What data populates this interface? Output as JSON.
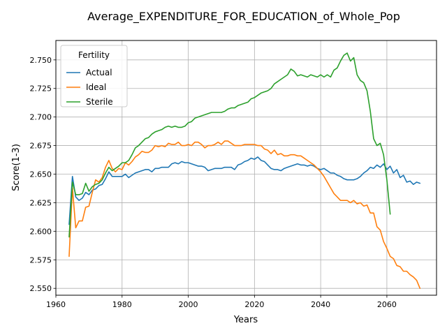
{
  "chart_data": {
    "type": "line",
    "title": "Average_EXPENDITURE_FOR_EDUCATION_of_Whole_Pop",
    "xlabel": "Years",
    "ylabel": "Score(1-3)",
    "xlim": [
      1960,
      2075
    ],
    "ylim": [
      2.544,
      2.767
    ],
    "x_ticks": [
      1960,
      1980,
      2000,
      2020,
      2040,
      2060
    ],
    "y_ticks": [
      2.55,
      2.575,
      2.6,
      2.625,
      2.65,
      2.675,
      2.7,
      2.725,
      2.75
    ],
    "grid": true,
    "legend": {
      "title": "Fertility",
      "placement": "top-left",
      "entries": [
        "Actual",
        "Ideal",
        "Sterile"
      ]
    },
    "series": [
      {
        "name": "Actual",
        "color": "#1f77b4",
        "points": [
          [
            1964,
            2.606
          ],
          [
            1965,
            2.648
          ],
          [
            1966,
            2.63
          ],
          [
            1967,
            2.627
          ],
          [
            1968,
            2.629
          ],
          [
            1969,
            2.634
          ],
          [
            1970,
            2.632
          ],
          [
            1971,
            2.636
          ],
          [
            1972,
            2.637
          ],
          [
            1973,
            2.64
          ],
          [
            1974,
            2.641
          ],
          [
            1975,
            2.646
          ],
          [
            1976,
            2.652
          ],
          [
            1977,
            2.648
          ],
          [
            1978,
            2.648
          ],
          [
            1979,
            2.648
          ],
          [
            1980,
            2.648
          ],
          [
            1981,
            2.65
          ],
          [
            1982,
            2.647
          ],
          [
            1983,
            2.649
          ],
          [
            1984,
            2.651
          ],
          [
            1985,
            2.652
          ],
          [
            1986,
            2.653
          ],
          [
            1987,
            2.654
          ],
          [
            1988,
            2.654
          ],
          [
            1989,
            2.652
          ],
          [
            1990,
            2.655
          ],
          [
            1991,
            2.655
          ],
          [
            1992,
            2.656
          ],
          [
            1993,
            2.656
          ],
          [
            1994,
            2.656
          ],
          [
            1995,
            2.659
          ],
          [
            1996,
            2.66
          ],
          [
            1997,
            2.659
          ],
          [
            1998,
            2.661
          ],
          [
            1999,
            2.66
          ],
          [
            2000,
            2.66
          ],
          [
            2001,
            2.659
          ],
          [
            2002,
            2.658
          ],
          [
            2003,
            2.657
          ],
          [
            2004,
            2.657
          ],
          [
            2005,
            2.656
          ],
          [
            2006,
            2.653
          ],
          [
            2007,
            2.654
          ],
          [
            2008,
            2.655
          ],
          [
            2009,
            2.655
          ],
          [
            2010,
            2.655
          ],
          [
            2011,
            2.656
          ],
          [
            2012,
            2.656
          ],
          [
            2013,
            2.656
          ],
          [
            2014,
            2.654
          ],
          [
            2015,
            2.658
          ],
          [
            2016,
            2.659
          ],
          [
            2017,
            2.661
          ],
          [
            2018,
            2.662
          ],
          [
            2019,
            2.664
          ],
          [
            2020,
            2.663
          ],
          [
            2021,
            2.665
          ],
          [
            2022,
            2.662
          ],
          [
            2023,
            2.661
          ],
          [
            2024,
            2.658
          ],
          [
            2025,
            2.655
          ],
          [
            2026,
            2.654
          ],
          [
            2027,
            2.654
          ],
          [
            2028,
            2.653
          ],
          [
            2029,
            2.655
          ],
          [
            2030,
            2.656
          ],
          [
            2031,
            2.657
          ],
          [
            2032,
            2.658
          ],
          [
            2033,
            2.659
          ],
          [
            2034,
            2.658
          ],
          [
            2035,
            2.658
          ],
          [
            2036,
            2.657
          ],
          [
            2037,
            2.658
          ],
          [
            2038,
            2.657
          ],
          [
            2039,
            2.655
          ],
          [
            2040,
            2.654
          ],
          [
            2041,
            2.655
          ],
          [
            2042,
            2.653
          ],
          [
            2043,
            2.651
          ],
          [
            2044,
            2.651
          ],
          [
            2045,
            2.649
          ],
          [
            2046,
            2.648
          ],
          [
            2047,
            2.646
          ],
          [
            2048,
            2.645
          ],
          [
            2049,
            2.645
          ],
          [
            2050,
            2.645
          ],
          [
            2051,
            2.646
          ],
          [
            2052,
            2.648
          ],
          [
            2053,
            2.651
          ],
          [
            2054,
            2.653
          ],
          [
            2055,
            2.656
          ],
          [
            2056,
            2.655
          ],
          [
            2057,
            2.658
          ],
          [
            2058,
            2.656
          ],
          [
            2059,
            2.659
          ],
          [
            2060,
            2.654
          ],
          [
            2061,
            2.657
          ],
          [
            2062,
            2.651
          ],
          [
            2063,
            2.654
          ],
          [
            2064,
            2.647
          ],
          [
            2065,
            2.649
          ],
          [
            2066,
            2.643
          ],
          [
            2067,
            2.644
          ],
          [
            2068,
            2.641
          ],
          [
            2069,
            2.643
          ],
          [
            2070,
            2.642
          ]
        ]
      },
      {
        "name": "Ideal",
        "color": "#ff7f0e",
        "points": [
          [
            1964,
            2.578
          ],
          [
            1965,
            2.638
          ],
          [
            1966,
            2.603
          ],
          [
            1967,
            2.609
          ],
          [
            1968,
            2.609
          ],
          [
            1969,
            2.621
          ],
          [
            1970,
            2.622
          ],
          [
            1971,
            2.634
          ],
          [
            1972,
            2.645
          ],
          [
            1973,
            2.643
          ],
          [
            1974,
            2.647
          ],
          [
            1975,
            2.656
          ],
          [
            1976,
            2.662
          ],
          [
            1977,
            2.655
          ],
          [
            1978,
            2.652
          ],
          [
            1979,
            2.655
          ],
          [
            1980,
            2.654
          ],
          [
            1981,
            2.66
          ],
          [
            1982,
            2.658
          ],
          [
            1983,
            2.661
          ],
          [
            1984,
            2.665
          ],
          [
            1985,
            2.667
          ],
          [
            1986,
            2.67
          ],
          [
            1987,
            2.669
          ],
          [
            1988,
            2.669
          ],
          [
            1989,
            2.671
          ],
          [
            1990,
            2.675
          ],
          [
            1991,
            2.674
          ],
          [
            1992,
            2.675
          ],
          [
            1993,
            2.674
          ],
          [
            1994,
            2.677
          ],
          [
            1995,
            2.676
          ],
          [
            1996,
            2.676
          ],
          [
            1997,
            2.678
          ],
          [
            1998,
            2.675
          ],
          [
            1999,
            2.675
          ],
          [
            2000,
            2.676
          ],
          [
            2001,
            2.675
          ],
          [
            2002,
            2.678
          ],
          [
            2003,
            2.678
          ],
          [
            2004,
            2.676
          ],
          [
            2005,
            2.673
          ],
          [
            2006,
            2.675
          ],
          [
            2007,
            2.675
          ],
          [
            2008,
            2.676
          ],
          [
            2009,
            2.678
          ],
          [
            2010,
            2.676
          ],
          [
            2011,
            2.679
          ],
          [
            2012,
            2.679
          ],
          [
            2013,
            2.677
          ],
          [
            2014,
            2.675
          ],
          [
            2015,
            2.675
          ],
          [
            2016,
            2.675
          ],
          [
            2017,
            2.676
          ],
          [
            2018,
            2.676
          ],
          [
            2019,
            2.676
          ],
          [
            2020,
            2.676
          ],
          [
            2021,
            2.675
          ],
          [
            2022,
            2.675
          ],
          [
            2023,
            2.672
          ],
          [
            2024,
            2.671
          ],
          [
            2025,
            2.668
          ],
          [
            2026,
            2.671
          ],
          [
            2027,
            2.667
          ],
          [
            2028,
            2.668
          ],
          [
            2029,
            2.666
          ],
          [
            2030,
            2.666
          ],
          [
            2031,
            2.667
          ],
          [
            2032,
            2.667
          ],
          [
            2033,
            2.666
          ],
          [
            2034,
            2.666
          ],
          [
            2035,
            2.664
          ],
          [
            2036,
            2.662
          ],
          [
            2037,
            2.66
          ],
          [
            2038,
            2.658
          ],
          [
            2039,
            2.655
          ],
          [
            2040,
            2.652
          ],
          [
            2041,
            2.648
          ],
          [
            2042,
            2.643
          ],
          [
            2043,
            2.638
          ],
          [
            2044,
            2.633
          ],
          [
            2045,
            2.63
          ],
          [
            2046,
            2.627
          ],
          [
            2047,
            2.627
          ],
          [
            2048,
            2.627
          ],
          [
            2049,
            2.625
          ],
          [
            2050,
            2.627
          ],
          [
            2051,
            2.624
          ],
          [
            2052,
            2.625
          ],
          [
            2053,
            2.622
          ],
          [
            2054,
            2.623
          ],
          [
            2055,
            2.616
          ],
          [
            2056,
            2.616
          ],
          [
            2057,
            2.604
          ],
          [
            2058,
            2.601
          ],
          [
            2059,
            2.591
          ],
          [
            2060,
            2.585
          ],
          [
            2061,
            2.578
          ],
          [
            2062,
            2.576
          ],
          [
            2063,
            2.57
          ],
          [
            2064,
            2.569
          ],
          [
            2065,
            2.565
          ],
          [
            2066,
            2.565
          ],
          [
            2067,
            2.562
          ],
          [
            2068,
            2.56
          ],
          [
            2069,
            2.557
          ],
          [
            2070,
            2.55
          ]
        ]
      },
      {
        "name": "Sterile",
        "color": "#2ca02c",
        "points": [
          [
            1964,
            2.595
          ],
          [
            1965,
            2.643
          ],
          [
            1966,
            2.632
          ],
          [
            1967,
            2.632
          ],
          [
            1968,
            2.633
          ],
          [
            1969,
            2.642
          ],
          [
            1970,
            2.635
          ],
          [
            1971,
            2.639
          ],
          [
            1972,
            2.641
          ],
          [
            1973,
            2.642
          ],
          [
            1974,
            2.645
          ],
          [
            1975,
            2.651
          ],
          [
            1976,
            2.656
          ],
          [
            1977,
            2.653
          ],
          [
            1978,
            2.655
          ],
          [
            1979,
            2.657
          ],
          [
            1980,
            2.66
          ],
          [
            1981,
            2.66
          ],
          [
            1982,
            2.662
          ],
          [
            1983,
            2.667
          ],
          [
            1984,
            2.673
          ],
          [
            1985,
            2.675
          ],
          [
            1986,
            2.678
          ],
          [
            1987,
            2.681
          ],
          [
            1988,
            2.682
          ],
          [
            1989,
            2.685
          ],
          [
            1990,
            2.687
          ],
          [
            1991,
            2.688
          ],
          [
            1992,
            2.689
          ],
          [
            1993,
            2.691
          ],
          [
            1994,
            2.692
          ],
          [
            1995,
            2.691
          ],
          [
            1996,
            2.692
          ],
          [
            1997,
            2.691
          ],
          [
            1998,
            2.691
          ],
          [
            1999,
            2.692
          ],
          [
            2000,
            2.695
          ],
          [
            2001,
            2.696
          ],
          [
            2002,
            2.699
          ],
          [
            2003,
            2.7
          ],
          [
            2004,
            2.701
          ],
          [
            2005,
            2.702
          ],
          [
            2006,
            2.703
          ],
          [
            2007,
            2.704
          ],
          [
            2008,
            2.704
          ],
          [
            2009,
            2.704
          ],
          [
            2010,
            2.704
          ],
          [
            2011,
            2.705
          ],
          [
            2012,
            2.707
          ],
          [
            2013,
            2.708
          ],
          [
            2014,
            2.708
          ],
          [
            2015,
            2.71
          ],
          [
            2016,
            2.711
          ],
          [
            2017,
            2.712
          ],
          [
            2018,
            2.713
          ],
          [
            2019,
            2.716
          ],
          [
            2020,
            2.717
          ],
          [
            2021,
            2.719
          ],
          [
            2022,
            2.721
          ],
          [
            2023,
            2.722
          ],
          [
            2024,
            2.723
          ],
          [
            2025,
            2.725
          ],
          [
            2026,
            2.729
          ],
          [
            2027,
            2.731
          ],
          [
            2028,
            2.733
          ],
          [
            2029,
            2.735
          ],
          [
            2030,
            2.737
          ],
          [
            2031,
            2.742
          ],
          [
            2032,
            2.74
          ],
          [
            2033,
            2.736
          ],
          [
            2034,
            2.737
          ],
          [
            2035,
            2.736
          ],
          [
            2036,
            2.735
          ],
          [
            2037,
            2.737
          ],
          [
            2038,
            2.736
          ],
          [
            2039,
            2.735
          ],
          [
            2040,
            2.737
          ],
          [
            2041,
            2.735
          ],
          [
            2042,
            2.737
          ],
          [
            2043,
            2.735
          ],
          [
            2044,
            2.741
          ],
          [
            2045,
            2.743
          ],
          [
            2046,
            2.749
          ],
          [
            2047,
            2.754
          ],
          [
            2048,
            2.756
          ],
          [
            2049,
            2.749
          ],
          [
            2050,
            2.752
          ],
          [
            2051,
            2.737
          ],
          [
            2052,
            2.732
          ],
          [
            2053,
            2.73
          ],
          [
            2054,
            2.723
          ],
          [
            2055,
            2.705
          ],
          [
            2056,
            2.681
          ],
          [
            2057,
            2.675
          ],
          [
            2058,
            2.677
          ],
          [
            2059,
            2.667
          ],
          [
            2060,
            2.645
          ],
          [
            2061,
            2.615
          ]
        ]
      }
    ]
  }
}
